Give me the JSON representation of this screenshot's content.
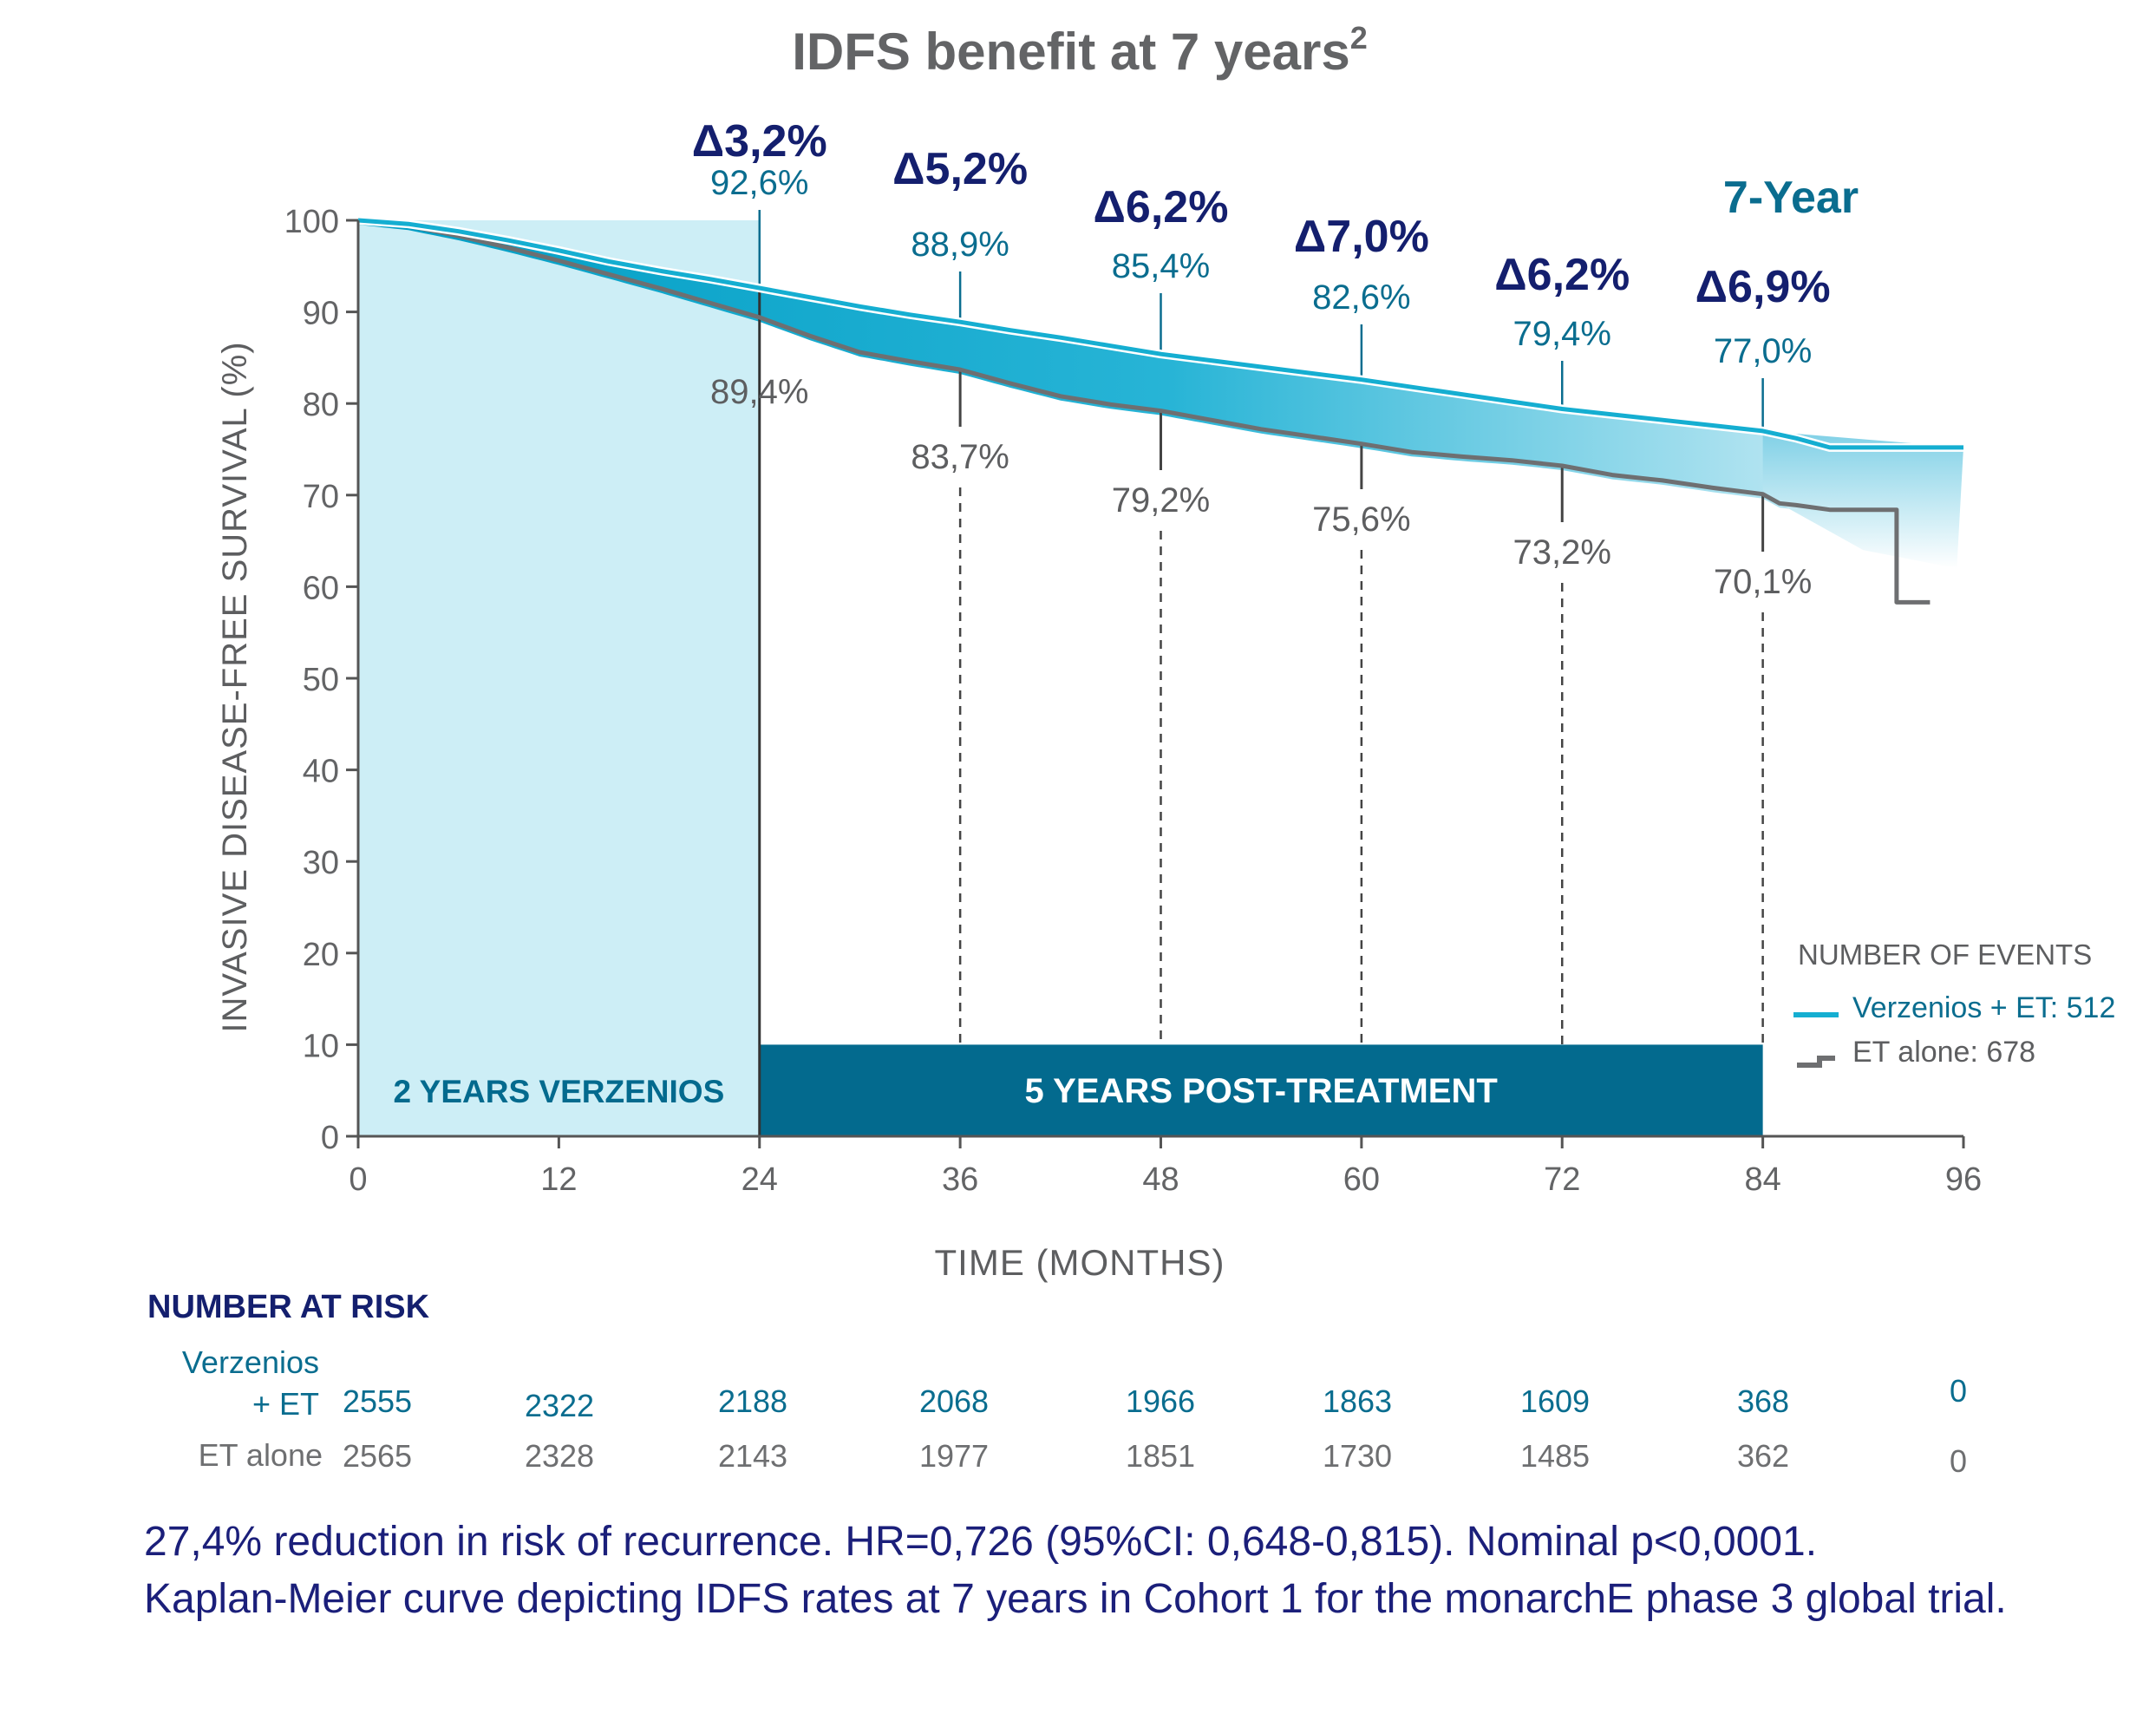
{
  "colors": {
    "verzenios": "#15aed1",
    "et_alone": "#6e6f71",
    "delta_navy": "#141f6e",
    "teal_text": "#0a6d8f",
    "band_dark": "#036a8e",
    "band_light": "#cdeef6",
    "axis": "#555555"
  },
  "chart_data": {
    "type": "line",
    "title": "IDFS benefit at 7 years",
    "title_superscript": "2",
    "xlabel": "TIME (MONTHS)",
    "ylabel": "INVASIVE DISEASE-FREE SURVIVAL (%)",
    "xlim": [
      0,
      96
    ],
    "ylim": [
      0,
      100
    ],
    "xticks": [
      0,
      12,
      24,
      36,
      48,
      60,
      72,
      84,
      96
    ],
    "yticks": [
      0,
      10,
      20,
      30,
      40,
      50,
      60,
      70,
      80,
      90,
      100
    ],
    "series": [
      {
        "name": "Verzenios + ET",
        "color": "#15aed1",
        "x": [
          0,
          3,
          6,
          9,
          12,
          15,
          18,
          21,
          24,
          27,
          30,
          33,
          36,
          39,
          42,
          45,
          48,
          51,
          54,
          57,
          60,
          63,
          66,
          69,
          72,
          75,
          78,
          81,
          84,
          86,
          88,
          92,
          96
        ],
        "y": [
          100,
          99.6,
          98.8,
          97.8,
          96.7,
          95.5,
          94.5,
          93.6,
          92.6,
          91.6,
          90.6,
          89.7,
          88.9,
          88.0,
          87.2,
          86.3,
          85.4,
          84.7,
          84.0,
          83.3,
          82.6,
          81.8,
          81.0,
          80.2,
          79.4,
          78.8,
          78.2,
          77.6,
          77.0,
          76.2,
          75.2,
          75.2,
          75.2
        ]
      },
      {
        "name": "ET alone",
        "color": "#6e6f71",
        "x": [
          0,
          3,
          6,
          9,
          12,
          15,
          18,
          21,
          24,
          27,
          30,
          33,
          36,
          39,
          42,
          45,
          48,
          51,
          54,
          57,
          60,
          63,
          66,
          69,
          72,
          75,
          78,
          81,
          84,
          85,
          86,
          88,
          90,
          92,
          92,
          94
        ],
        "y": [
          100,
          99.4,
          98.3,
          97.0,
          95.6,
          94.1,
          92.6,
          91.0,
          89.4,
          87.4,
          85.6,
          84.6,
          83.7,
          82.2,
          80.8,
          79.9,
          79.2,
          78.2,
          77.2,
          76.4,
          75.6,
          74.7,
          74.2,
          73.8,
          73.2,
          72.2,
          71.6,
          70.8,
          70.1,
          69.1,
          68.9,
          68.4,
          68.4,
          68.4,
          58.3,
          58.3
        ]
      }
    ],
    "annotations": [
      {
        "x": 24,
        "delta": "Δ3,2%",
        "verzenios": "92,6%",
        "et": "89,4%"
      },
      {
        "x": 36,
        "delta": "Δ5,2%",
        "verzenios": "88,9%",
        "et": "83,7%"
      },
      {
        "x": 48,
        "delta": "Δ6,2%",
        "verzenios": "85,4%",
        "et": "79,2%"
      },
      {
        "x": 60,
        "delta": "Δ7,0%",
        "verzenios": "82,6%",
        "et": "75,6%"
      },
      {
        "x": 72,
        "delta": "Δ6,2%",
        "verzenios": "79,4%",
        "et": "73,2%"
      },
      {
        "x": 84,
        "delta": "Δ6,9%",
        "verzenios": "77,0%",
        "et": "70,1%",
        "header": "7-Year"
      }
    ],
    "regions": [
      {
        "label": "2 YEARS VERZENIOS",
        "x_start": 0,
        "x_end": 24
      },
      {
        "label": "5 YEARS POST-TREATMENT",
        "x_start": 24,
        "x_end": 84
      }
    ],
    "legend": {
      "title": "NUMBER OF EVENTS",
      "placement": "bottom-right",
      "entries": [
        {
          "label": "Verzenios + ET: 512",
          "color": "#15aed1"
        },
        {
          "label": "ET alone: 678",
          "color": "#6e6f71"
        }
      ]
    },
    "risk_table": {
      "title": "NUMBER AT RISK",
      "rows": [
        {
          "label_line1": "Verzenios",
          "label_line2": "+ ET",
          "values": [
            "2555",
            "2322",
            "2188",
            "2068",
            "1966",
            "1863",
            "1609",
            "368",
            "0"
          ]
        },
        {
          "label_line1": "ET alone",
          "label_line2": "",
          "values": [
            "2565",
            "2328",
            "2143",
            "1977",
            "1851",
            "1730",
            "1485",
            "362",
            "0"
          ]
        }
      ]
    }
  },
  "footnote": {
    "line1": "27,4% reduction in risk of recurrence. HR=0,726 (95%CI: 0,648-0,815). Nominal p<0,0001.",
    "line2": "Kaplan-Meier curve depicting IDFS rates at 7 years in Cohort 1 for the monarchE phase 3 global trial."
  }
}
